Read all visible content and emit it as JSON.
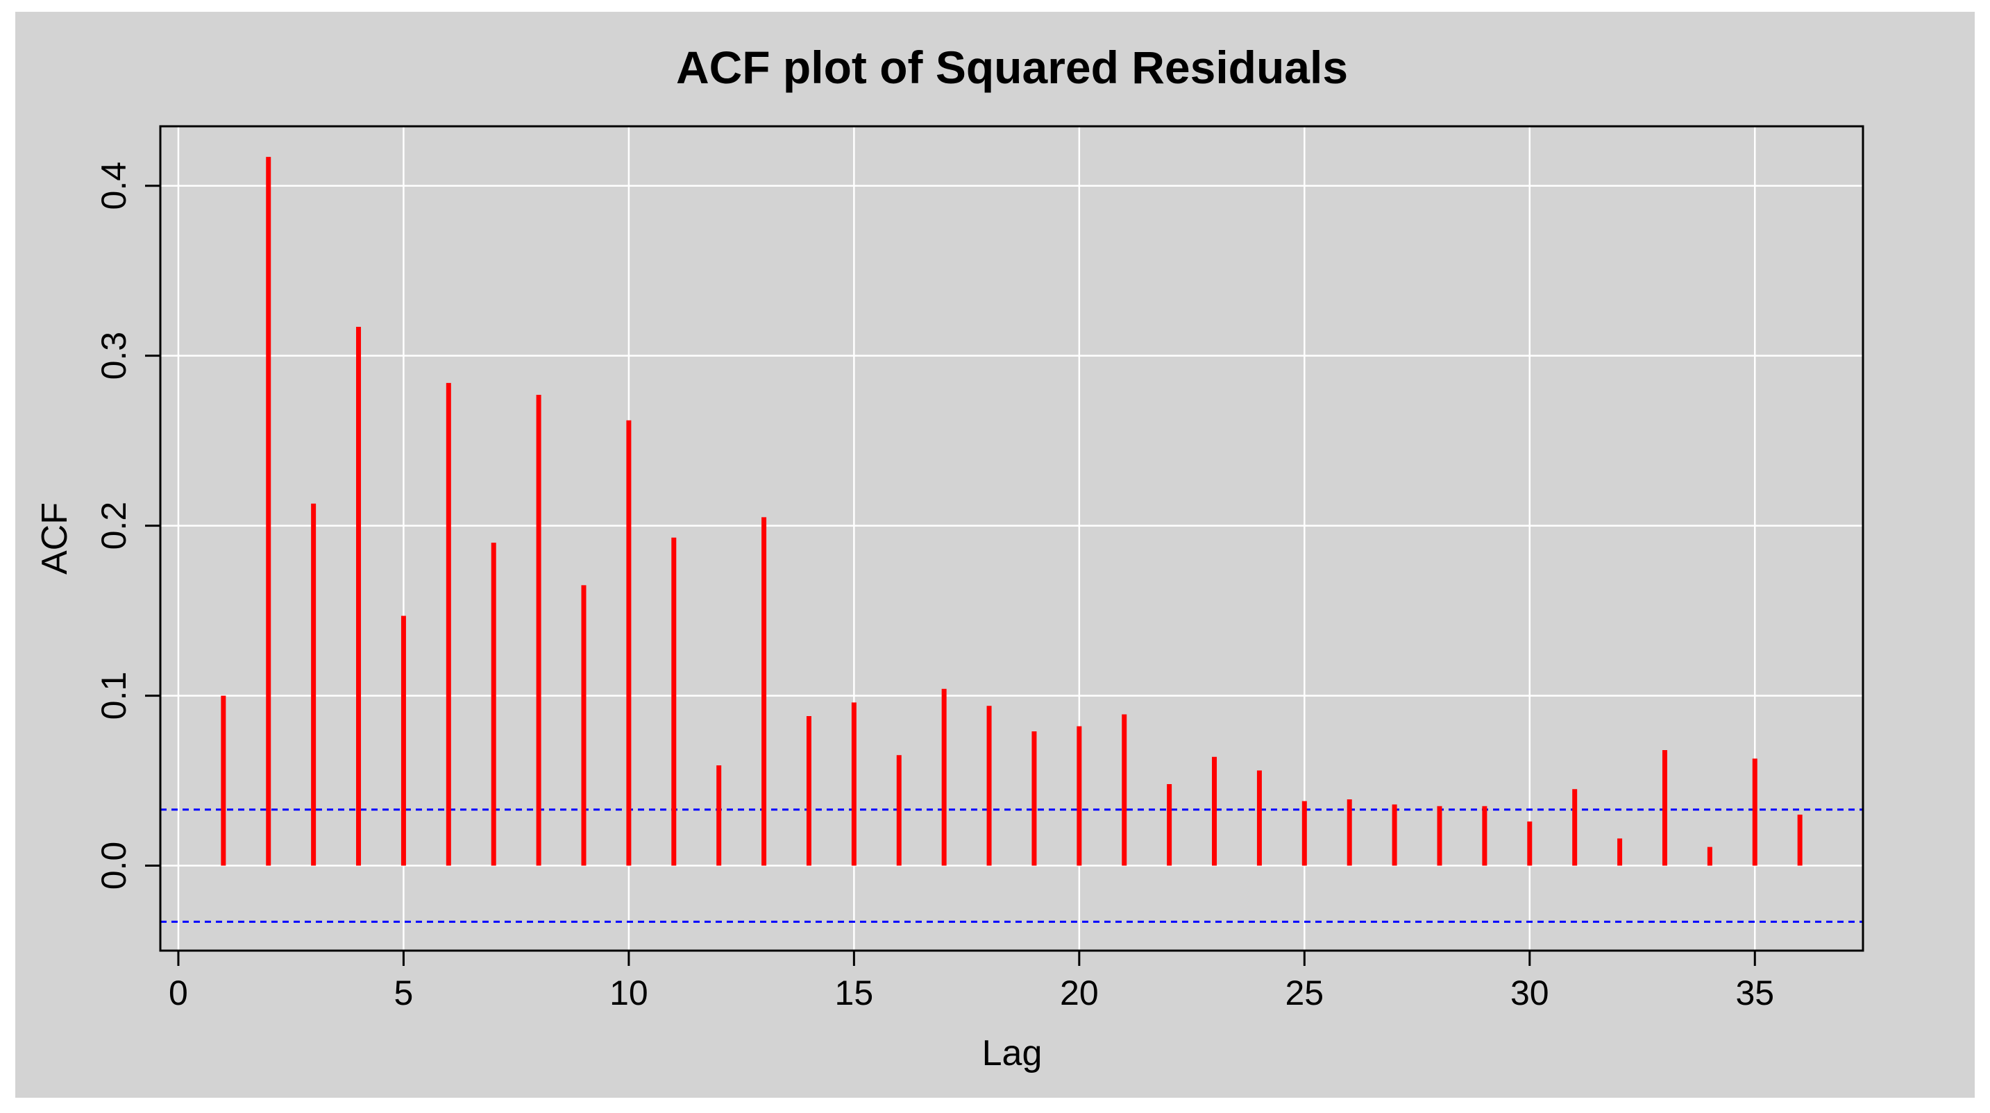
{
  "chart_data": {
    "type": "bar",
    "subtype": "acf-stem",
    "title": "ACF plot of Squared Residuals",
    "xlabel": "Lag",
    "ylabel": "ACF",
    "xlim": [
      -0.4,
      37.4
    ],
    "ylim": [
      -0.05,
      0.435
    ],
    "xticks": [
      0,
      5,
      10,
      15,
      20,
      25,
      30,
      35
    ],
    "yticks": [
      0.0,
      0.1,
      0.2,
      0.3,
      0.4
    ],
    "ytick_labels": [
      "0.0",
      "0.1",
      "0.2",
      "0.3",
      "0.4"
    ],
    "grid": true,
    "legend": "none",
    "lags": [
      1,
      2,
      3,
      4,
      5,
      6,
      7,
      8,
      9,
      10,
      11,
      12,
      13,
      14,
      15,
      16,
      17,
      18,
      19,
      20,
      21,
      22,
      23,
      24,
      25,
      26,
      27,
      28,
      29,
      30,
      31,
      32,
      33,
      34,
      35,
      36
    ],
    "values": [
      0.1,
      0.417,
      0.213,
      0.317,
      0.147,
      0.284,
      0.19,
      0.277,
      0.165,
      0.262,
      0.193,
      0.059,
      0.205,
      0.088,
      0.096,
      0.065,
      0.104,
      0.094,
      0.079,
      0.082,
      0.089,
      0.048,
      0.064,
      0.056,
      0.038,
      0.039,
      0.036,
      0.035,
      0.035,
      0.026,
      0.045,
      0.016,
      0.068,
      0.011,
      0.063,
      0.03
    ],
    "confidence_bounds": [
      0.033,
      -0.033
    ],
    "colors": {
      "background": "#d3d3d3",
      "plot_panel": "#d3d3d3",
      "grid": "#ffffff",
      "bars": "#ff0000",
      "bounds": "#0000ff"
    }
  }
}
